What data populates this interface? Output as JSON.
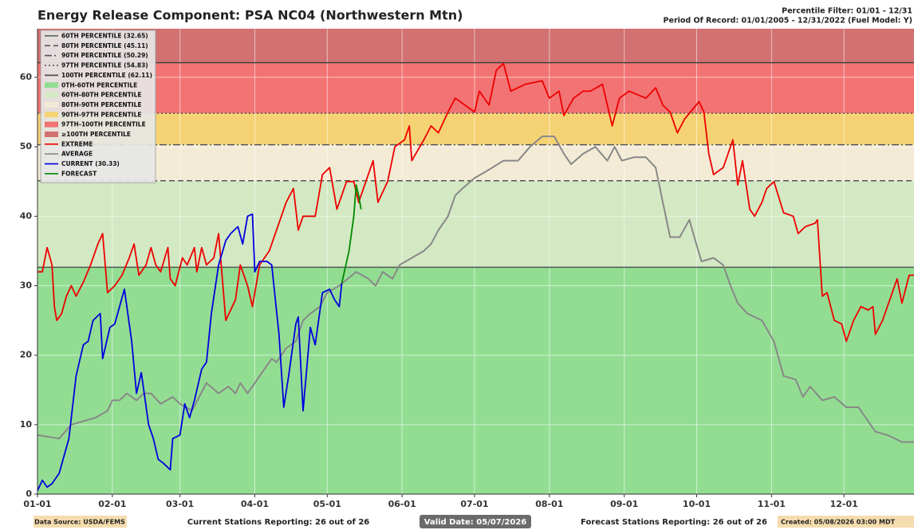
{
  "chart_data": {
    "type": "line",
    "title": "Energy Release Component: PSA NC04 (Northwestern Mtn)",
    "subtitle": [
      "Percentile Filter: 01/01 - 12/31",
      "Period Of Record: 01/01/2005 - 12/31/2022 (Fuel Model: Y)"
    ],
    "footer": [
      "Data Source: USDA/FEMS",
      "Current Stations Reporting: 26 out of 26",
      "Valid Date: 05/07/2026",
      "Forecast Stations Reporting: 26 out of 26",
      "Created: 05/08/2026 03:00 MDT"
    ],
    "xlim": [
      0,
      363
    ],
    "xticks": [
      {
        "value": 0,
        "label": "01-01"
      },
      {
        "value": 31,
        "label": "02-01"
      },
      {
        "value": 59,
        "label": "03-01"
      },
      {
        "value": 90,
        "label": "04-01"
      },
      {
        "value": 120,
        "label": "05-01"
      },
      {
        "value": 151,
        "label": "06-01"
      },
      {
        "value": 181,
        "label": "07-01"
      },
      {
        "value": 212,
        "label": "08-01"
      },
      {
        "value": 243,
        "label": "09-01"
      },
      {
        "value": 273,
        "label": "10-01"
      },
      {
        "value": 304,
        "label": "11-01"
      },
      {
        "value": 334,
        "label": "12-01"
      }
    ],
    "ylim": [
      0,
      67
    ],
    "yticks": [
      0,
      10,
      20,
      30,
      40,
      50,
      60
    ],
    "grid": true,
    "legend": "upper left",
    "percentile_lines": [
      {
        "name": "60TH PERCENTILE (32.65)",
        "value": 32.65,
        "color": "#505a50",
        "dash": "solid"
      },
      {
        "name": "80TH PERCENTILE (45.11)",
        "value": 45.11,
        "color": "#555555",
        "dash": "dashed"
      },
      {
        "name": "90TH PERCENTILE (50.29)",
        "value": 50.29,
        "color": "#555555",
        "dash": "dashdot"
      },
      {
        "name": "97TH PERCENTILE (54.83)",
        "value": 54.83,
        "color": "#555555",
        "dash": "dotted"
      },
      {
        "name": "100TH PERCENTILE (62.11)",
        "value": 62.11,
        "color": "#444444",
        "dash": "solid"
      }
    ],
    "bands": [
      {
        "name": "0TH-60TH PERCENTILE",
        "color": "#93dd93"
      },
      {
        "name": "60TH-80TH PERCENTILE",
        "color": "#d3e9c3"
      },
      {
        "name": "80TH-90TH PERCENTILE",
        "color": "#f3ebd6"
      },
      {
        "name": "90TH-97TH PERCENTILE",
        "color": "#f5d274"
      },
      {
        "name": "97TH-100TH PERCENTILE",
        "color": "#f27373"
      },
      {
        "name": "≥100TH PERCENTILE",
        "color": "#d27171"
      }
    ],
    "series": [
      {
        "name": "EXTREME",
        "color": "#ee0000",
        "x": [
          0,
          2,
          4,
          6,
          7,
          8,
          10,
          12,
          14,
          16,
          19,
          22,
          25,
          27,
          29,
          32,
          35,
          38,
          40,
          42,
          45,
          47,
          49,
          51,
          54,
          55,
          57,
          60,
          62,
          65,
          66,
          68,
          70,
          73,
          75,
          78,
          82,
          84,
          87,
          89,
          92,
          96,
          99,
          103,
          106,
          108,
          110,
          115,
          118,
          121,
          124,
          128,
          131,
          133,
          136,
          139,
          141,
          145,
          148,
          152,
          154,
          155,
          160,
          163,
          166,
          170,
          173,
          181,
          183,
          187,
          190,
          193,
          196,
          202,
          209,
          212,
          216,
          218,
          222,
          226,
          229,
          234,
          238,
          241,
          245,
          252,
          256,
          259,
          262,
          265,
          268,
          274,
          276,
          278,
          280,
          284,
          288,
          290,
          292,
          295,
          297,
          300,
          302,
          305,
          309,
          313,
          315,
          318,
          322,
          323,
          325,
          327,
          330,
          333,
          335,
          338,
          341,
          344,
          346,
          347,
          350,
          353,
          356,
          358,
          361,
          363
        ],
        "values": [
          32,
          32,
          35.5,
          33,
          27,
          25,
          26,
          28.5,
          30,
          28.5,
          30.5,
          33,
          36,
          37.5,
          29,
          30,
          31.5,
          34,
          36,
          31.5,
          33,
          35.5,
          33,
          32,
          35.5,
          31,
          30,
          34,
          33,
          35.5,
          32,
          35.5,
          33,
          34,
          37.5,
          25,
          28,
          33,
          30,
          27,
          33,
          35,
          38,
          42,
          44,
          38,
          40,
          40,
          46,
          47,
          41,
          45,
          45,
          42,
          45,
          48,
          42,
          45,
          50,
          51,
          53,
          48,
          51,
          53,
          52,
          55,
          57,
          55,
          58,
          56,
          61,
          62,
          58,
          59,
          59.5,
          57,
          58,
          54.5,
          57,
          58,
          58,
          59,
          53,
          57,
          58,
          57,
          58.5,
          56,
          55,
          52,
          54,
          56.5,
          55,
          49,
          46,
          47,
          51,
          44.5,
          48,
          41,
          40,
          42,
          44,
          45,
          40.5,
          40,
          37.5,
          38.5,
          39,
          39.5,
          28.5,
          29,
          25,
          24.5,
          22,
          25,
          27,
          26.5,
          27,
          23,
          25,
          28,
          31,
          27.5,
          31.5,
          31.5
        ]
      },
      {
        "name": "AVERAGE",
        "color": "#888888",
        "x": [
          0,
          9,
          14,
          24,
          29,
          31,
          34,
          37,
          41,
          44,
          47,
          51,
          56,
          59,
          64,
          67,
          70,
          75,
          79,
          82,
          84,
          87,
          90,
          94,
          97,
          99,
          103,
          107,
          110,
          113,
          117,
          120,
          125,
          132,
          137,
          140,
          143,
          147,
          150,
          155,
          160,
          163,
          166,
          170,
          173,
          176,
          181,
          186,
          193,
          199,
          204,
          209,
          214,
          218,
          221,
          226,
          231,
          236,
          239,
          242,
          247,
          252,
          256,
          259,
          262,
          266,
          270,
          272,
          275,
          280,
          284,
          287,
          290,
          294,
          300,
          305,
          309,
          314,
          317,
          320,
          325,
          330,
          335,
          340,
          343,
          347,
          352,
          358,
          363
        ],
        "values": [
          8.5,
          8,
          10,
          11,
          12,
          13.5,
          13.5,
          14.5,
          13.5,
          14.5,
          14.5,
          13,
          14,
          13,
          12,
          14,
          16,
          14.5,
          15.5,
          14.5,
          16,
          14.5,
          16,
          18,
          19.5,
          19,
          21,
          22,
          25,
          26,
          27,
          29,
          30,
          32,
          31,
          30,
          32,
          31,
          33,
          34,
          35,
          36,
          38,
          40,
          43,
          44,
          45.5,
          46.5,
          48,
          48,
          50,
          51.5,
          51.5,
          49,
          47.5,
          49,
          50,
          48,
          50,
          48,
          48.5,
          48.5,
          47,
          42,
          37,
          37,
          39.5,
          37,
          33.5,
          34,
          33,
          30,
          27.5,
          26,
          25,
          22,
          17,
          16.5,
          14,
          15.5,
          13.5,
          14,
          12.5,
          12.5,
          11,
          9,
          8.5,
          7.5,
          7.5
        ]
      },
      {
        "name": "CURRENT (30.33)",
        "color": "#0000dd",
        "x": [
          0,
          2,
          4,
          6,
          9,
          13,
          16,
          19,
          21,
          23,
          26,
          27,
          30,
          32,
          34,
          36,
          39,
          41,
          43,
          46,
          48,
          50,
          52,
          55,
          56,
          59,
          61,
          63,
          65,
          68,
          70,
          72,
          75,
          78,
          80,
          83,
          85,
          87,
          89,
          90,
          92,
          95,
          97,
          100,
          102,
          104,
          107,
          108,
          110,
          113,
          115,
          118,
          121,
          123,
          125,
          126
        ],
        "values": [
          0.5,
          2,
          1,
          1.5,
          3,
          8,
          17,
          21.5,
          22,
          25,
          26,
          19.5,
          24,
          24.5,
          27,
          29.5,
          22,
          14.5,
          17.5,
          10,
          8,
          5,
          4.5,
          3.5,
          8,
          8.5,
          13,
          11,
          13.5,
          18,
          19,
          26,
          33,
          36.5,
          37.5,
          38.5,
          36,
          40,
          40.3,
          32,
          33.5,
          33.5,
          33,
          23,
          12.5,
          17,
          24.5,
          25.5,
          12,
          24,
          21.5,
          29,
          29.5,
          28,
          27,
          30.33
        ]
      },
      {
        "name": "FORECAST",
        "color": "#008800",
        "x": [
          126,
          129,
          131,
          132,
          133,
          134
        ],
        "values": [
          30.33,
          35,
          40,
          44.5,
          43,
          41
        ]
      }
    ]
  }
}
